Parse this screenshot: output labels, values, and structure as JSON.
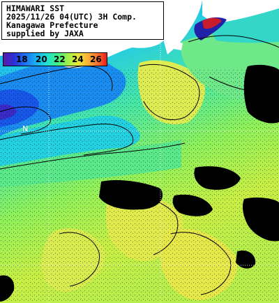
{
  "title_lines": {
    "line1": "HIMAWARI SST",
    "line2": "2025/11/26 04(UTC) 3H Comp.",
    "line3": "Kanagawa Prefecture",
    "line4": "supplied by JAXA"
  },
  "legend": {
    "values": [
      "18",
      "20",
      "22",
      "24",
      "26"
    ],
    "colors": {
      "cold": "#5a1aa8",
      "cool": "#18b0f0",
      "mid": "#3cf08a",
      "warm": "#e8ea3a",
      "hot": "#e81c1c",
      "land": "#ffffff",
      "no_data": "#000000"
    }
  },
  "map_labels": {
    "lat_label": "N"
  }
}
